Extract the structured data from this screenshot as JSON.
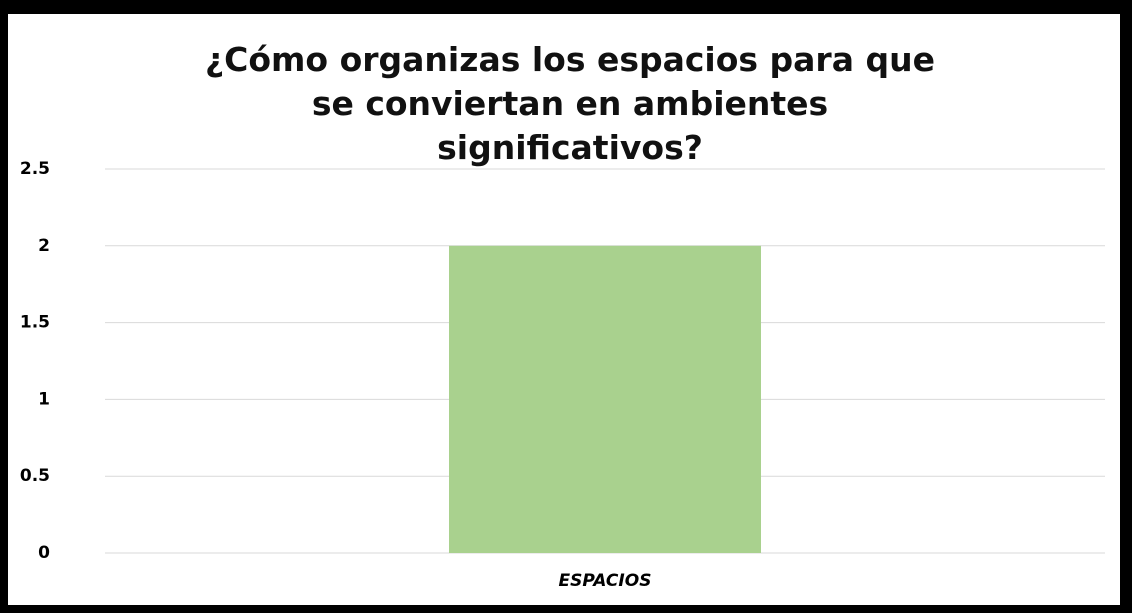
{
  "chart_data": {
    "type": "bar",
    "title": "¿Cómo organizas los espacios para que se conviertan en ambientes significativos?",
    "categories": [
      "ESPACIOS"
    ],
    "values": [
      2
    ],
    "color": "#a9d18e",
    "ylim": [
      0,
      2.5
    ],
    "yticks": [
      0,
      0.5,
      1,
      1.5,
      2,
      2.5
    ],
    "grid": true
  }
}
